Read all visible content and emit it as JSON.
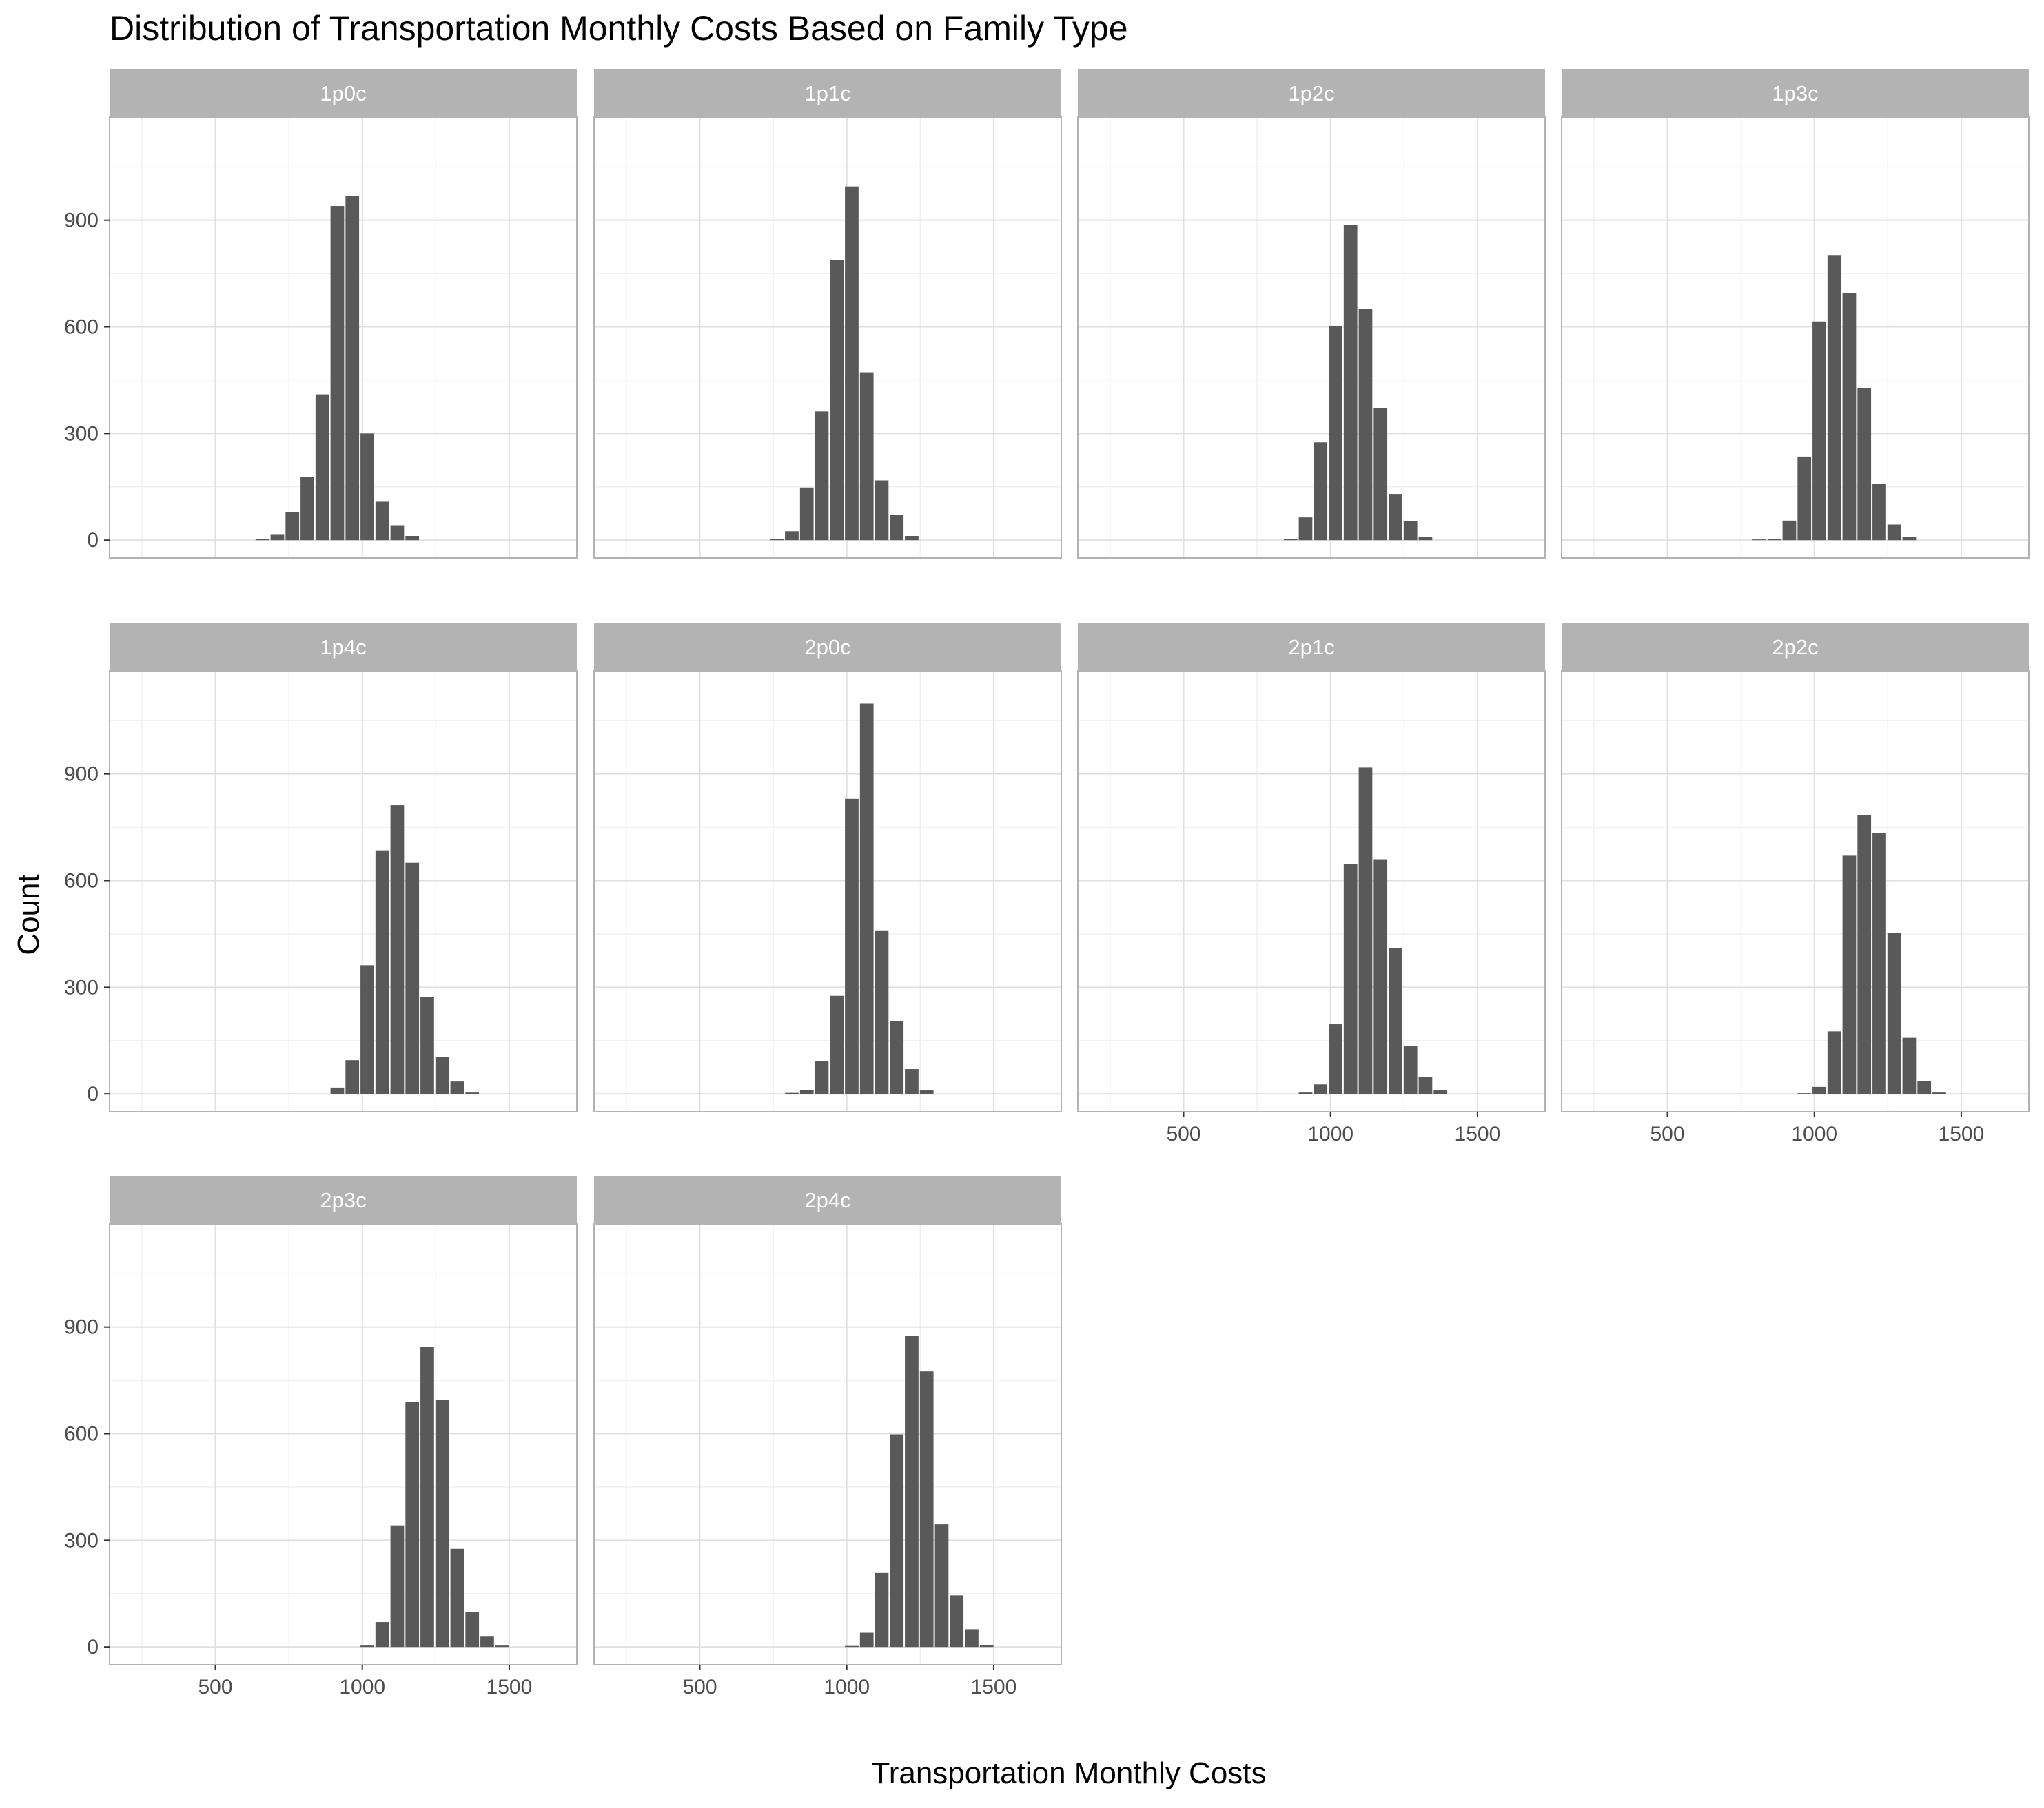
{
  "chart_data": {
    "type": "bar",
    "subtype": "faceted-histogram",
    "title": "Distribution of Transportation Monthly Costs Based on Family Type",
    "xlabel": "Transportation Monthly Costs",
    "ylabel": "Count",
    "xlim": [
      140,
      1730
    ],
    "ylim": [
      -50,
      1190
    ],
    "x_ticks": [
      500,
      1000,
      1500
    ],
    "y_ticks": [
      0,
      300,
      600,
      900
    ],
    "grid": true,
    "bin_width": 51,
    "colors": {
      "bar": "#595959",
      "strip_background": "#b3b3b3",
      "strip_text": "#ffffff",
      "grid_major": "#e0e0e0",
      "grid_minor": "#f0f0f0",
      "panel_border": "#b3b3b3",
      "background": "#ffffff"
    },
    "panels": [
      {
        "label": "1p0c",
        "bins": [
          [
            660,
            4
          ],
          [
            711,
            15
          ],
          [
            762,
            78
          ],
          [
            813,
            178
          ],
          [
            864,
            410
          ],
          [
            915,
            940
          ],
          [
            966,
            968
          ],
          [
            1017,
            300
          ],
          [
            1068,
            108
          ],
          [
            1119,
            42
          ],
          [
            1170,
            12
          ]
        ]
      },
      {
        "label": "1p1c",
        "bins": [
          [
            762,
            4
          ],
          [
            813,
            25
          ],
          [
            864,
            148
          ],
          [
            915,
            362
          ],
          [
            966,
            788
          ],
          [
            1017,
            995
          ],
          [
            1068,
            472
          ],
          [
            1119,
            168
          ],
          [
            1170,
            72
          ],
          [
            1221,
            12
          ]
        ]
      },
      {
        "label": "1p2c",
        "bins": [
          [
            864,
            4
          ],
          [
            915,
            64
          ],
          [
            966,
            275
          ],
          [
            1017,
            603
          ],
          [
            1068,
            887
          ],
          [
            1119,
            650
          ],
          [
            1170,
            372
          ],
          [
            1221,
            130
          ],
          [
            1272,
            54
          ],
          [
            1323,
            10
          ]
        ]
      },
      {
        "label": "1p3c",
        "bins": [
          [
            813,
            2
          ],
          [
            864,
            4
          ],
          [
            915,
            55
          ],
          [
            966,
            235
          ],
          [
            1017,
            615
          ],
          [
            1068,
            802
          ],
          [
            1119,
            695
          ],
          [
            1170,
            427
          ],
          [
            1221,
            158
          ],
          [
            1272,
            44
          ],
          [
            1323,
            10
          ]
        ]
      },
      {
        "label": "1p4c",
        "bins": [
          [
            915,
            18
          ],
          [
            966,
            95
          ],
          [
            1017,
            362
          ],
          [
            1068,
            685
          ],
          [
            1119,
            812
          ],
          [
            1170,
            650
          ],
          [
            1221,
            273
          ],
          [
            1272,
            104
          ],
          [
            1323,
            35
          ],
          [
            1374,
            4
          ]
        ]
      },
      {
        "label": "2p0c",
        "bins": [
          [
            813,
            3
          ],
          [
            864,
            12
          ],
          [
            915,
            92
          ],
          [
            966,
            276
          ],
          [
            1017,
            830
          ],
          [
            1068,
            1098
          ],
          [
            1119,
            460
          ],
          [
            1170,
            205
          ],
          [
            1221,
            70
          ],
          [
            1272,
            10
          ]
        ]
      },
      {
        "label": "2p1c",
        "bins": [
          [
            915,
            4
          ],
          [
            966,
            27
          ],
          [
            1017,
            196
          ],
          [
            1068,
            646
          ],
          [
            1119,
            918
          ],
          [
            1170,
            660
          ],
          [
            1221,
            410
          ],
          [
            1272,
            134
          ],
          [
            1323,
            47
          ],
          [
            1374,
            10
          ]
        ]
      },
      {
        "label": "2p2c",
        "bins": [
          [
            966,
            2
          ],
          [
            1017,
            20
          ],
          [
            1068,
            176
          ],
          [
            1119,
            670
          ],
          [
            1170,
            784
          ],
          [
            1221,
            734
          ],
          [
            1272,
            452
          ],
          [
            1323,
            158
          ],
          [
            1374,
            37
          ],
          [
            1425,
            4
          ]
        ]
      },
      {
        "label": "2p3c",
        "bins": [
          [
            1017,
            4
          ],
          [
            1068,
            70
          ],
          [
            1119,
            342
          ],
          [
            1170,
            690
          ],
          [
            1221,
            845
          ],
          [
            1272,
            694
          ],
          [
            1323,
            276
          ],
          [
            1374,
            98
          ],
          [
            1425,
            29
          ],
          [
            1476,
            4
          ]
        ]
      },
      {
        "label": "2p4c",
        "bins": [
          [
            1017,
            3
          ],
          [
            1068,
            40
          ],
          [
            1119,
            208
          ],
          [
            1170,
            598
          ],
          [
            1221,
            875
          ],
          [
            1272,
            775
          ],
          [
            1323,
            345
          ],
          [
            1374,
            145
          ],
          [
            1425,
            50
          ],
          [
            1476,
            6
          ]
        ]
      }
    ]
  }
}
